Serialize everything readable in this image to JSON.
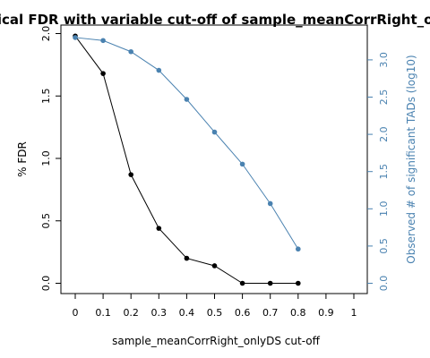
{
  "chart_data": {
    "type": "line",
    "title": "Empirical FDR with variable cut-off of sample_meanCorrRight_onlyDS",
    "xlabel": "sample_meanCorrRight_onlyDS cut-off",
    "ylabel": "% FDR",
    "ylabel_right": "Observed # of significant TADs (log10)",
    "x_ticks": [
      "0",
      "0.1",
      "0.2",
      "0.3",
      "0.4",
      "0.5",
      "0.6",
      "0.7",
      "0.8",
      "0.9",
      "1"
    ],
    "y_ticks": [
      "0.0",
      "0.5",
      "1.0",
      "1.5",
      "2.0"
    ],
    "y_right_ticks": [
      "0.0",
      "0.5",
      "1.0",
      "1.5",
      "2.0",
      "2.5",
      "3.0"
    ],
    "xlim": [
      0,
      1
    ],
    "ylim": [
      0,
      2.0
    ],
    "ylim_right": [
      0,
      3.35
    ],
    "grid": false,
    "series": [
      {
        "axis": "left",
        "color": "#000000",
        "x": [
          0,
          0.1,
          0.2,
          0.3,
          0.4,
          0.5,
          0.6,
          0.7,
          0.8
        ],
        "values": [
          1.98,
          1.68,
          0.87,
          0.44,
          0.2,
          0.14,
          0.0,
          0.0,
          0.0
        ]
      },
      {
        "axis": "right",
        "color": "#4a82b0",
        "x": [
          0,
          0.1,
          0.2,
          0.3,
          0.4,
          0.5,
          0.6,
          0.7,
          0.8
        ],
        "values": [
          3.3,
          3.26,
          3.11,
          2.86,
          2.47,
          2.03,
          1.6,
          1.07,
          0.46
        ]
      }
    ]
  }
}
